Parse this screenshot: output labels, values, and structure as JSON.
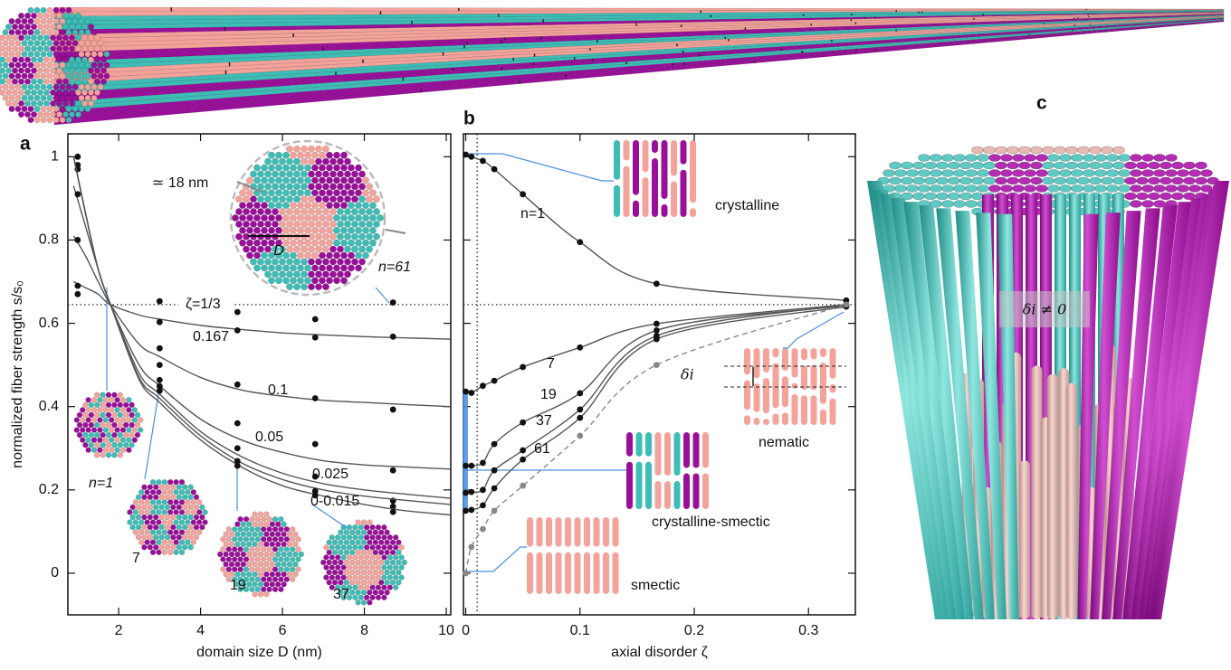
{
  "chart_data": [
    {
      "type": "scatter",
      "panel": "a",
      "x_label": "domain size D (nm)",
      "y_label": "normalized fiber strength s/s₀",
      "x": [
        1,
        3,
        4.9,
        6.8,
        8.7
      ],
      "fit_x": [
        0.9,
        1.2,
        1.5,
        1.8,
        2.5,
        3,
        4,
        5,
        6,
        7,
        8,
        9,
        10.1
      ],
      "series": [
        {
          "name": "ζ=1/3",
          "color": "#111111",
          "values": [
            0.67,
            0.653,
            0.627,
            0.61,
            0.65
          ],
          "fit": null
        },
        {
          "name": "0.167",
          "color": "#111111",
          "values": [
            0.69,
            0.603,
            0.583,
            0.566,
            0.568
          ],
          "fit": [
            0.7,
            0.685,
            0.67,
            0.645,
            0.62,
            0.61,
            0.595,
            0.585,
            0.577,
            0.572,
            0.568,
            0.565,
            0.562
          ]
        },
        {
          "name": "0.1",
          "color": "#111111",
          "values": [
            0.8,
            0.54,
            0.453,
            0.42,
            0.393
          ],
          "fit": [
            0.81,
            0.76,
            0.7,
            0.645,
            0.55,
            0.52,
            0.47,
            0.44,
            0.425,
            0.415,
            0.41,
            0.405,
            0.4
          ]
        },
        {
          "name": "0.05",
          "color": "#111111",
          "values": [
            0.91,
            0.5,
            0.36,
            0.31,
            0.247
          ],
          "fit": [
            0.93,
            0.83,
            0.73,
            0.645,
            0.5,
            0.45,
            0.37,
            0.32,
            0.29,
            0.27,
            0.26,
            0.255,
            0.25
          ]
        },
        {
          "name": "0.025",
          "color": "#111111",
          "values": [
            0.97,
            0.464,
            0.3,
            0.232,
            0.174
          ],
          "fit": [
            1.0,
            0.86,
            0.73,
            0.645,
            0.48,
            0.43,
            0.34,
            0.28,
            0.24,
            0.215,
            0.2,
            0.19,
            0.18
          ]
        },
        {
          "name": "0-0.015",
          "color": "#111111",
          "values": [
            0.98,
            0.449,
            0.269,
            0.197,
            0.16
          ],
          "fit": [
            1.0,
            0.86,
            0.73,
            0.645,
            0.47,
            0.42,
            0.33,
            0.265,
            0.225,
            0.2,
            0.185,
            0.175,
            0.165
          ]
        },
        {
          "name": null,
          "color": "#111111",
          "values": [
            1.0,
            0.438,
            0.258,
            0.187,
            0.147
          ],
          "fit": [
            1.0,
            0.86,
            0.73,
            0.645,
            0.465,
            0.41,
            0.32,
            0.255,
            0.21,
            0.185,
            0.165,
            0.15,
            0.14
          ]
        }
      ],
      "line_color": "#555555",
      "reference_y": 0.645,
      "xlim": [
        0.76,
        10.11
      ],
      "ylim": [
        -0.1,
        1.055
      ],
      "xticks": [
        2,
        4,
        6,
        8,
        10
      ],
      "yticks": [
        0,
        0.2,
        0.4,
        0.6,
        0.8,
        1
      ],
      "annotations": [
        "≃ 18 nm",
        "D",
        "n=61",
        "n=1",
        "7",
        "19",
        "37"
      ]
    },
    {
      "type": "scatter",
      "panel": "b",
      "x_label": "axial disorder ζ",
      "x": [
        0,
        0.005,
        0.015,
        0.025,
        0.05,
        0.1,
        0.167,
        0.333
      ],
      "series": [
        {
          "name": "n=1",
          "color": "#111111",
          "values": [
            1.005,
            1.0,
            0.99,
            0.97,
            0.91,
            0.795,
            0.695,
            0.655
          ],
          "dashed": false
        },
        {
          "name": "7",
          "color": "#111111",
          "values": [
            0.436,
            0.433,
            0.45,
            0.462,
            0.495,
            0.542,
            0.599,
            0.645
          ],
          "dashed": false
        },
        {
          "name": "19",
          "color": "#111111",
          "values": [
            0.258,
            0.258,
            0.265,
            0.31,
            0.362,
            0.432,
            0.583,
            0.642
          ],
          "dashed": false
        },
        {
          "name": "37",
          "color": "#111111",
          "values": [
            0.193,
            0.195,
            0.2,
            0.247,
            0.295,
            0.393,
            0.57,
            0.645
          ],
          "dashed": false
        },
        {
          "name": "61",
          "color": "#111111",
          "values": [
            0.15,
            0.152,
            0.163,
            0.204,
            0.273,
            0.373,
            0.562,
            0.64
          ],
          "dashed": false
        },
        {
          "name": null,
          "color": "#888888",
          "values": [
            0,
            0.063,
            0.106,
            0.15,
            0.21,
            0.33,
            0.5,
            0.645
          ],
          "dashed": true
        }
      ],
      "line_color": "#555555",
      "reference_y": 0.645,
      "reference_x": 0.01,
      "highlight_range": [
        0.15,
        0.44
      ],
      "highlight_color": "#4a8fe0",
      "xlim": [
        -0.002,
        0.341
      ],
      "ylim": [
        -0.1,
        1.055
      ],
      "xticks": [
        0,
        0.1,
        0.2,
        0.3
      ],
      "yticks": [
        0,
        0.2,
        0.4,
        0.6,
        0.8,
        1
      ],
      "ytick_labels": false,
      "annotations": [
        "crystalline",
        "nematic",
        "crystalline-smectic",
        "smectic",
        "δi"
      ]
    }
  ],
  "panel_c": {
    "panel": "c",
    "annotation": "δi ≠ 0"
  }
}
